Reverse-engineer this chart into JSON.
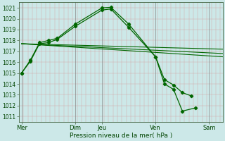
{
  "xlabel": "Pression niveau de la mer( hPa )",
  "ylim": [
    1010.5,
    1021.5
  ],
  "yticks": [
    1011,
    1012,
    1013,
    1014,
    1015,
    1016,
    1017,
    1018,
    1019,
    1020,
    1021
  ],
  "xtick_labels": [
    "Mer",
    "",
    "Dim",
    "Jeu",
    "",
    "Ven",
    "",
    "Sam"
  ],
  "xtick_positions": [
    0,
    1,
    2,
    3,
    4,
    5,
    6,
    7
  ],
  "xlim": [
    -0.1,
    7.5
  ],
  "background_color": "#cce8e8",
  "line_color": "#006600",
  "vline_positions": [
    0,
    2,
    3,
    5,
    7
  ],
  "vline_labels": [
    "Mer",
    "Dim",
    "Jeu",
    "Ven",
    "Sam"
  ],
  "series1": {
    "x": [
      0,
      0.33,
      0.67,
      1.0,
      1.33,
      2.0,
      3.0,
      3.33,
      4.0,
      5.0,
      5.33,
      5.67,
      6.0,
      6.33
    ],
    "y": [
      1015.0,
      1016.1,
      1017.7,
      1017.8,
      1018.1,
      1019.3,
      1020.8,
      1020.9,
      1019.2,
      1016.5,
      1014.4,
      1013.9,
      1013.2,
      1012.9
    ]
  },
  "series2": {
    "x": [
      0,
      0.33,
      0.67,
      1.0,
      1.33,
      2.0,
      3.0,
      3.33,
      4.0,
      5.0,
      5.33,
      5.67,
      6.0,
      6.5
    ],
    "y": [
      1015.0,
      1016.2,
      1017.8,
      1018.0,
      1018.2,
      1019.5,
      1021.0,
      1021.05,
      1019.5,
      1016.5,
      1014.0,
      1013.5,
      1011.5,
      1011.8
    ]
  },
  "trend1": {
    "x": [
      0,
      7.5
    ],
    "y": [
      1017.7,
      1016.8
    ]
  },
  "trend2": {
    "x": [
      0,
      7.5
    ],
    "y": [
      1017.7,
      1016.5
    ]
  },
  "trend3": {
    "x": [
      0,
      7.5
    ],
    "y": [
      1017.7,
      1017.2
    ]
  }
}
